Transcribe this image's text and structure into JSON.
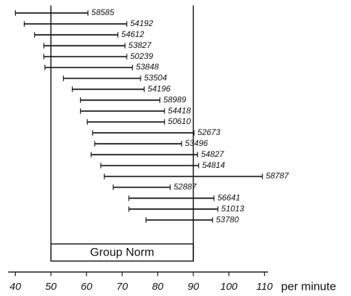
{
  "chart_data": {
    "type": "range",
    "categories": [
      "58585",
      "54192",
      "54612",
      "53827",
      "50239",
      "53848",
      "53504",
      "54196",
      "58989",
      "54418",
      "50610",
      "52673",
      "53496",
      "54827",
      "54814",
      "58787",
      "52887",
      "56641",
      "51013",
      "53780"
    ],
    "low": [
      40,
      42.5,
      45.4,
      48,
      48,
      48.3,
      53.5,
      56,
      58.3,
      58.3,
      60.2,
      61.7,
      62.3,
      61.3,
      64,
      65,
      67.5,
      71.9,
      71.9,
      76.7
    ],
    "high": [
      60.4,
      71.3,
      68.8,
      70.8,
      71.3,
      72.9,
      75.2,
      76.2,
      80.6,
      81.9,
      81.9,
      90.2,
      86.7,
      91.2,
      91.5,
      109.4,
      83.5,
      95.8,
      96.9,
      95.4
    ],
    "color": "#111111",
    "xlim": [
      38,
      111
    ],
    "xticks": [
      40,
      50,
      60,
      70,
      80,
      90,
      100,
      110
    ],
    "xlabel": "per minute",
    "reference": {
      "label": "Group Norm",
      "values": [
        50,
        90
      ]
    }
  }
}
